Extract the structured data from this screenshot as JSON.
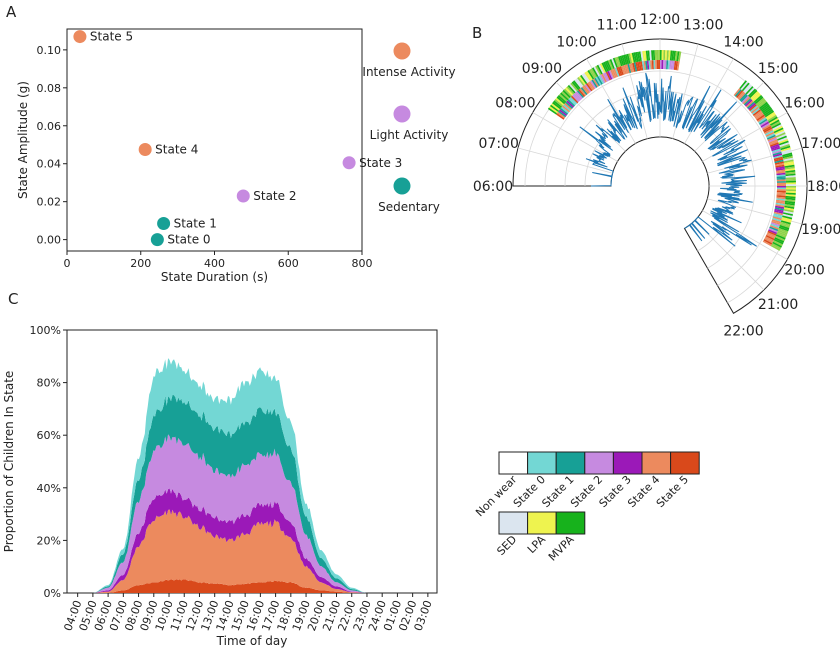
{
  "panels": [
    "A",
    "B",
    "C"
  ],
  "chart_data": [
    {
      "type": "scatter",
      "panel": "A",
      "xlabel": "State Duration (s)",
      "ylabel": "State Amplitude (g)",
      "xlim": [
        0,
        800
      ],
      "ylim": [
        -0.006,
        0.111
      ],
      "xticks": [
        0,
        200,
        400,
        600,
        800
      ],
      "yticks": [
        0.0,
        0.02,
        0.04,
        0.06,
        0.08,
        0.1
      ],
      "xtick_labels": [
        "0",
        "200",
        "400",
        "600",
        "800"
      ],
      "ytick_labels": [
        "0.00",
        "0.02",
        "0.04",
        "0.06",
        "0.08",
        "0.10"
      ],
      "points": [
        {
          "label": "State 0",
          "x": 245,
          "y": 0.0,
          "color": "#17a096"
        },
        {
          "label": "State 1",
          "x": 262,
          "y": 0.0085,
          "color": "#17a096"
        },
        {
          "label": "State 2",
          "x": 478,
          "y": 0.023,
          "color": "#c68ae0"
        },
        {
          "label": "State 3",
          "x": 765,
          "y": 0.0405,
          "color": "#c68ae0"
        },
        {
          "label": "State 4",
          "x": 212,
          "y": 0.0475,
          "color": "#ec8a5e"
        },
        {
          "label": "State 5",
          "x": 35,
          "y": 0.107,
          "color": "#ec8a5e"
        }
      ],
      "legend": [
        {
          "label": "Intense Activity",
          "color": "#ec8a5e"
        },
        {
          "label": "Light Activity",
          "color": "#c68ae0"
        },
        {
          "label": "Sedentary",
          "color": "#17a096"
        }
      ]
    },
    {
      "type": "polar",
      "panel": "B",
      "hour_labels": [
        "06:00",
        "07:00",
        "08:00",
        "09:00",
        "10:00",
        "11:00",
        "12:00",
        "13:00",
        "14:00",
        "15:00",
        "16:00",
        "17:00",
        "18:00",
        "19:00",
        "20:00",
        "21:00",
        "22:00"
      ],
      "radial_series_color": "#1f77b4",
      "start_hour": 6,
      "end_hour": 22,
      "description": "Radial acceleration trace over one day with hidden-state colour rings"
    },
    {
      "type": "area",
      "panel": "C",
      "xlabel": "Time of day",
      "ylabel": "Proportion of Children In State",
      "ylim": [
        0,
        100
      ],
      "yticks": [
        0,
        20,
        40,
        60,
        80,
        100
      ],
      "ytick_labels": [
        "0%",
        "20%",
        "40%",
        "60%",
        "80%",
        "100%"
      ],
      "x_hours": [
        4,
        5,
        6,
        7,
        8,
        9,
        10,
        11,
        12,
        13,
        14,
        15,
        16,
        17,
        18,
        19,
        20,
        21,
        22,
        23,
        24,
        25,
        26,
        27
      ],
      "xtick_labels": [
        "04:00",
        "05:00",
        "06:00",
        "07:00",
        "08:00",
        "09:00",
        "10:00",
        "11:00",
        "12:00",
        "13:00",
        "14:00",
        "15:00",
        "16:00",
        "17:00",
        "18:00",
        "19:00",
        "20:00",
        "21:00",
        "22:00",
        "23:00",
        "24:00",
        "01:00",
        "02:00",
        "03:00"
      ],
      "series": [
        {
          "name": "State 5",
          "color": "#d9491b",
          "values": [
            0,
            0,
            0,
            1,
            3,
            4,
            5,
            5,
            4,
            3.5,
            3,
            3.5,
            4,
            4.5,
            4,
            2,
            1,
            0.5,
            0,
            0,
            0,
            0,
            0,
            0
          ]
        },
        {
          "name": "State 4",
          "color": "#ec8a5e",
          "values": [
            0,
            0,
            0.5,
            4,
            15,
            24,
            26,
            24,
            21,
            18,
            17,
            19,
            22,
            22,
            17,
            8,
            3,
            1,
            0.3,
            0,
            0,
            0,
            0,
            0
          ]
        },
        {
          "name": "State 3",
          "color": "#9b19b8",
          "values": [
            0,
            0,
            0.5,
            2,
            5,
            8,
            8,
            7,
            7,
            7,
            7,
            7,
            7,
            7,
            6,
            3,
            2,
            1,
            0.2,
            0,
            0,
            0,
            0,
            0
          ]
        },
        {
          "name": "State 2",
          "color": "#c68ae0",
          "values": [
            0,
            0,
            1,
            5,
            12,
            18,
            20,
            21,
            20,
            18,
            17,
            19,
            19,
            19,
            15,
            9,
            4,
            1.5,
            0.5,
            0,
            0,
            0,
            0,
            0
          ]
        },
        {
          "name": "State 1",
          "color": "#17a096",
          "values": [
            0,
            0,
            0.5,
            3,
            8,
            13,
            15,
            16,
            16,
            16,
            16,
            16,
            17,
            16,
            13,
            7,
            3,
            1.5,
            0.5,
            0,
            0,
            0,
            0,
            0
          ]
        },
        {
          "name": "State 0",
          "color": "#73d7d4",
          "values": [
            0,
            0,
            0.5,
            2,
            8,
            15,
            14,
            12,
            11,
            11,
            13,
            15,
            15,
            13,
            10,
            5,
            3,
            1.5,
            0.5,
            0,
            0,
            0,
            0,
            0
          ]
        }
      ]
    }
  ],
  "state_legend": [
    {
      "label": "Non wear",
      "color": "#ffffff"
    },
    {
      "label": "State 0",
      "color": "#73d7d4"
    },
    {
      "label": "State 1",
      "color": "#17a096"
    },
    {
      "label": "State 2",
      "color": "#c68ae0"
    },
    {
      "label": "State 3",
      "color": "#9b19b8"
    },
    {
      "label": "State 4",
      "color": "#ec8a5e"
    },
    {
      "label": "State 5",
      "color": "#d9491b"
    }
  ],
  "activity_legend": [
    {
      "label": "SED",
      "color": "#dbe5ef"
    },
    {
      "label": "LPA",
      "color": "#eef34f"
    },
    {
      "label": "MVPA",
      "color": "#17b21c"
    }
  ]
}
